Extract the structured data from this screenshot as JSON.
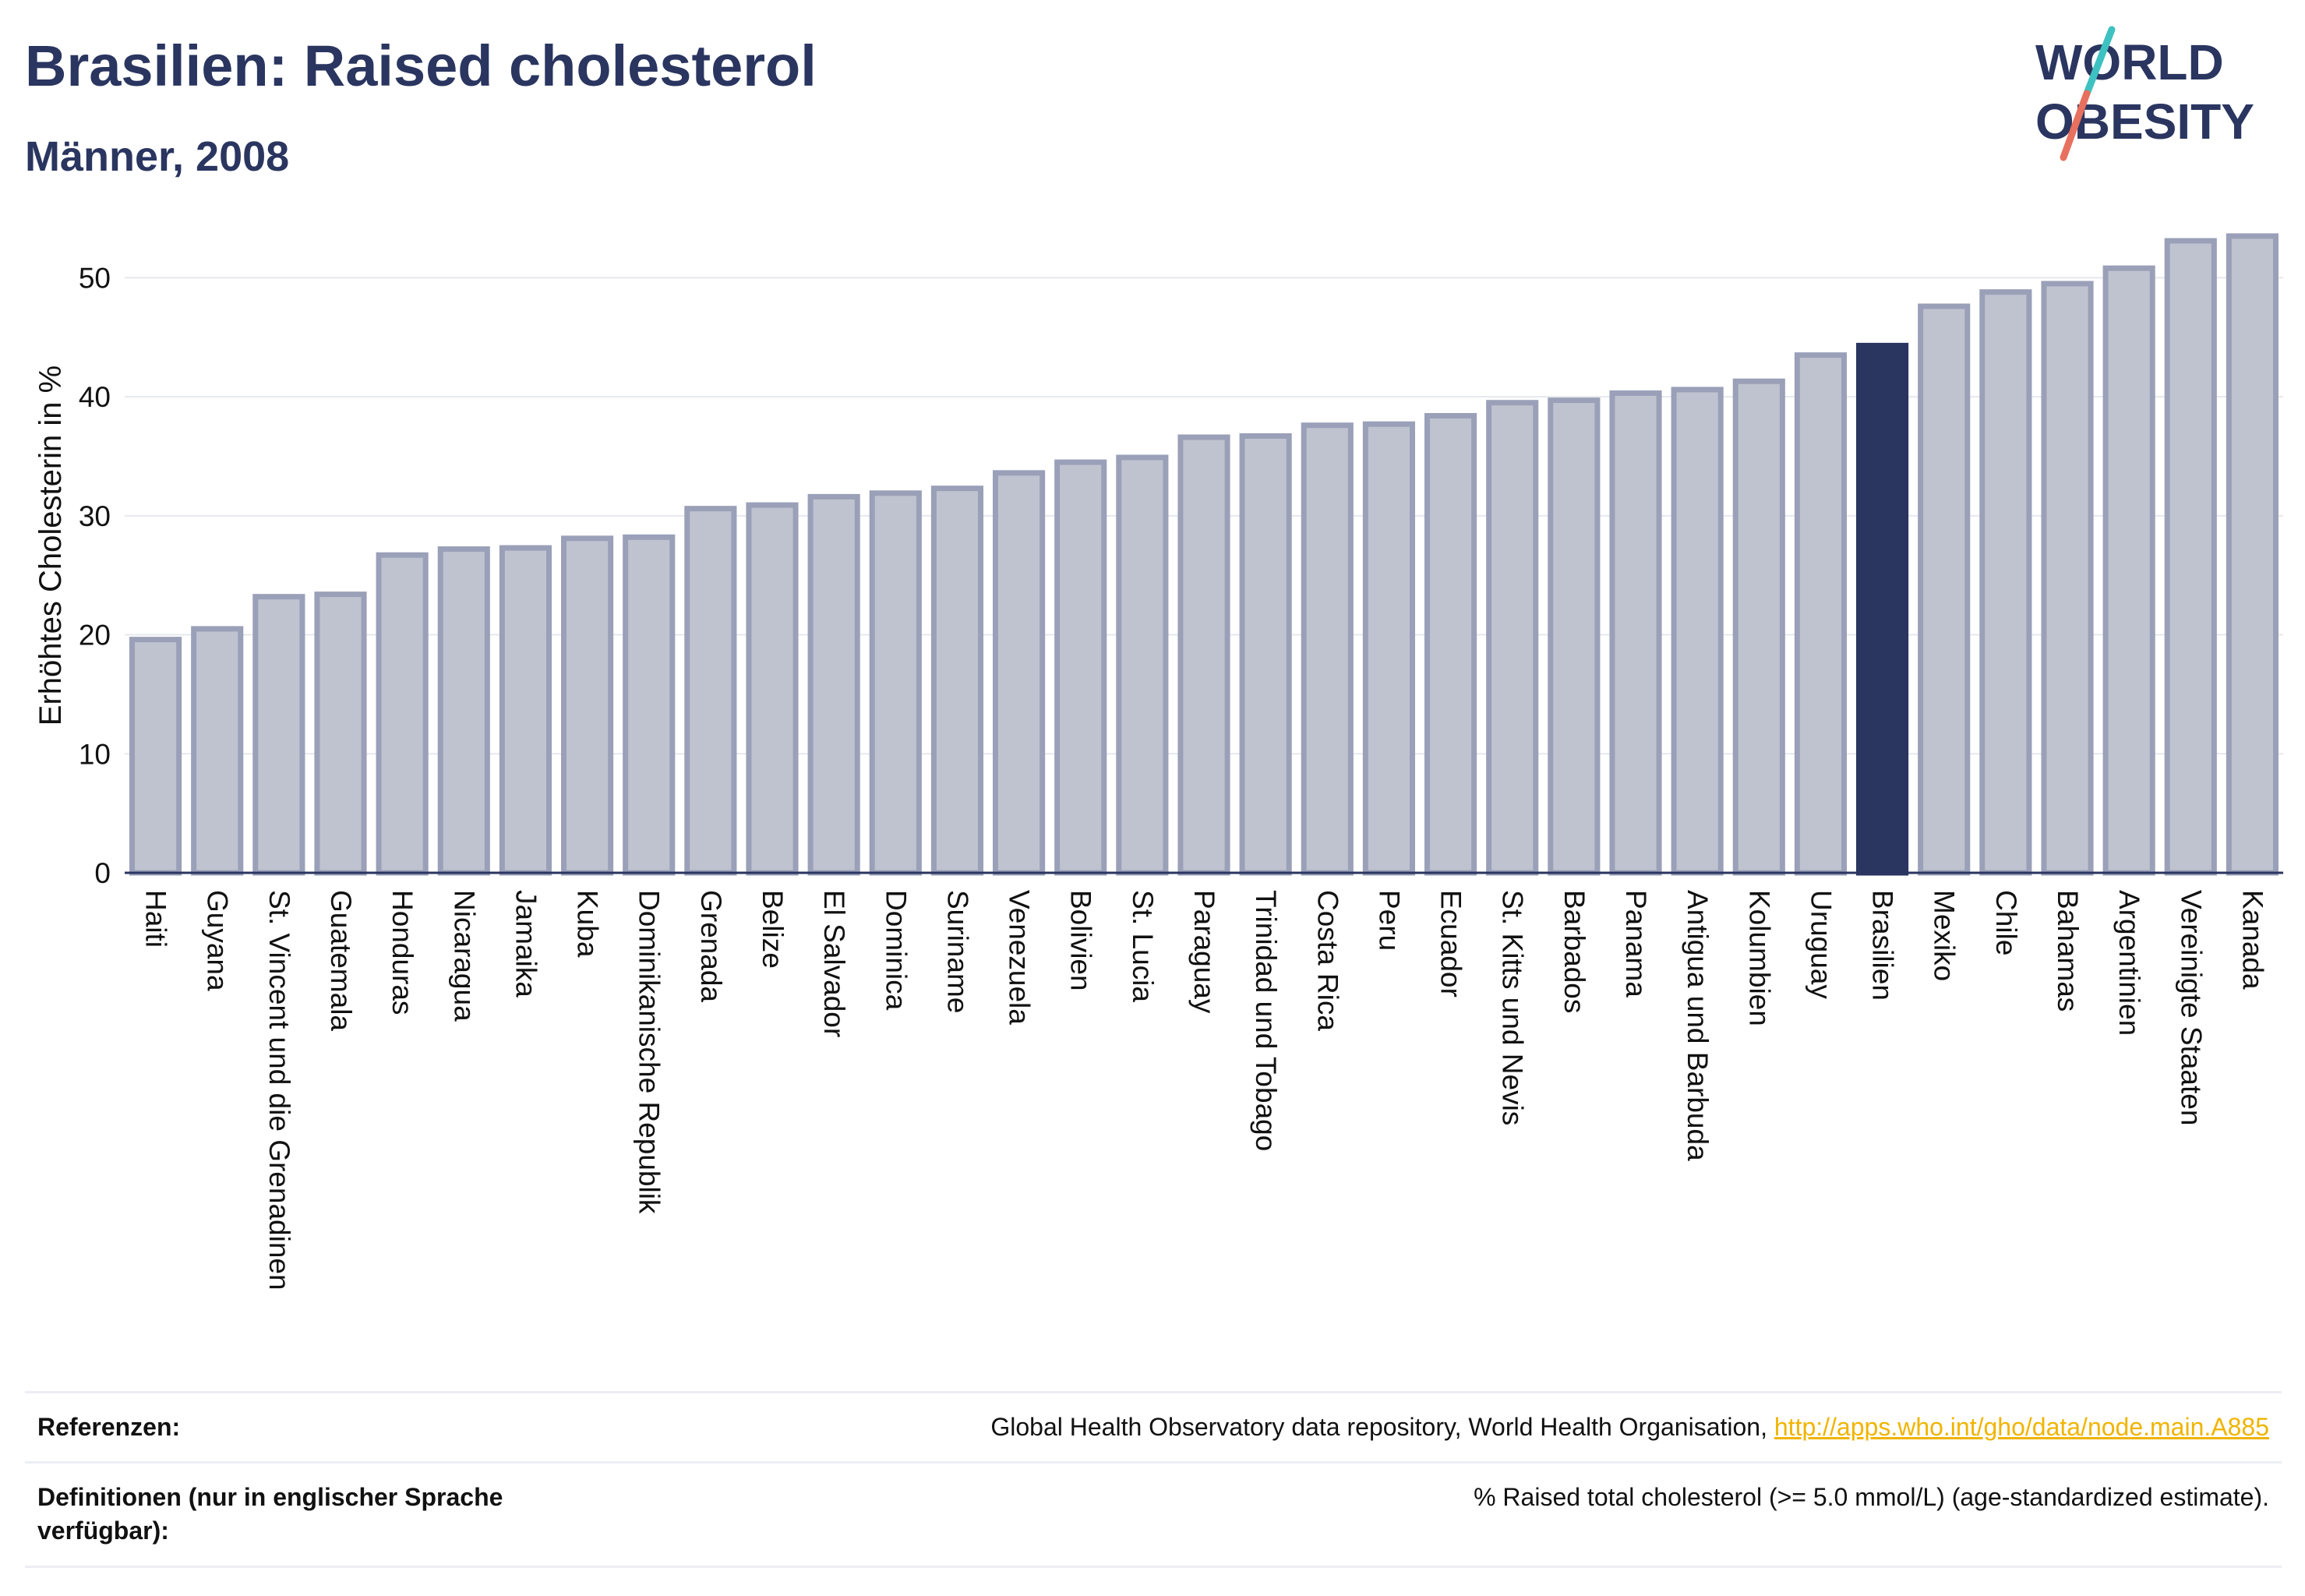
{
  "header": {
    "title": "Brasilien: Raised cholesterol",
    "subtitle": "Männer, 2008"
  },
  "logo": {
    "line1": "WORLD",
    "line2": "OBESITY",
    "text_color": "#2a3560",
    "slash_top_color": "#3ec1c1",
    "slash_bottom_color": "#e8705e"
  },
  "colors": {
    "bar": "#bfc3d0",
    "bar_border": "#9aa0b8",
    "highlight": "#2a3560",
    "grid": "#e6e8ee",
    "axis": "#2a3560"
  },
  "chart_data": {
    "type": "bar",
    "ylabel": "Erhöhtes Cholesterin in %",
    "xlabel": "",
    "ylim": [
      0,
      55
    ],
    "yticks": [
      0,
      10,
      20,
      30,
      40,
      50
    ],
    "grid": true,
    "highlight": "Brasilien",
    "categories": [
      "Haiti",
      "Guyana",
      "St. Vincent und die Grenadinen",
      "Guatemala",
      "Honduras",
      "Nicaragua",
      "Jamaika",
      "Kuba",
      "Dominikanische Republik",
      "Grenada",
      "Belize",
      "El Salvador",
      "Dominica",
      "Suriname",
      "Venezuela",
      "Bolivien",
      "St. Lucia",
      "Paraguay",
      "Trinidad und Tobago",
      "Costa Rica",
      "Peru",
      "Ecuador",
      "St. Kitts und Nevis",
      "Barbados",
      "Panama",
      "Antigua und Barbuda",
      "Kolumbien",
      "Uruguay",
      "Brasilien",
      "Mexiko",
      "Chile",
      "Bahamas",
      "Argentinien",
      "Vereinigte Staaten",
      "Kanada"
    ],
    "values": [
      19.6,
      20.5,
      23.2,
      23.4,
      26.7,
      27.2,
      27.3,
      28.1,
      28.2,
      30.6,
      30.9,
      31.6,
      31.9,
      32.3,
      33.6,
      34.5,
      34.9,
      36.6,
      36.7,
      37.6,
      37.7,
      38.4,
      39.5,
      39.7,
      40.3,
      40.6,
      41.3,
      43.5,
      44.3,
      47.6,
      48.8,
      49.5,
      50.8,
      53.1,
      53.5
    ]
  },
  "footer": {
    "references_label": "Referenzen:",
    "references_text": "Global Health Observatory data repository, World Health Organisation, ",
    "references_link": "http://apps.who.int/gho/data/node.main.A885",
    "definitions_label": "Definitionen (nur in englischer Sprache verfügbar):",
    "definitions_text": "% Raised total cholesterol (>= 5.0 mmol/L) (age-standardized estimate)."
  }
}
